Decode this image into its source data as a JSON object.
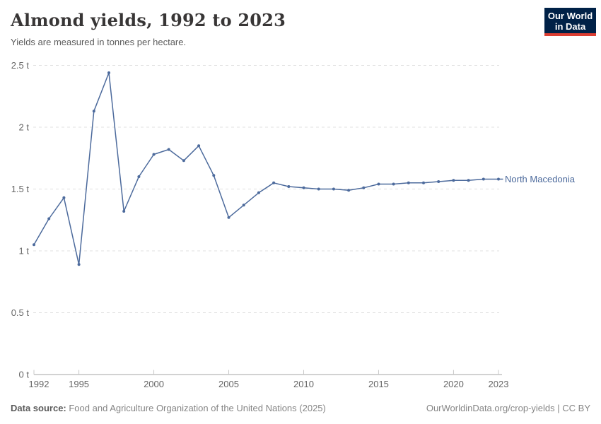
{
  "header": {
    "title": "Almond yields, 1992 to 2023",
    "subtitle": "Yields are measured in tonnes per hectare.",
    "logo": {
      "line1": "Our World",
      "line2": "in Data"
    }
  },
  "chart_data": {
    "type": "line",
    "title": "Almond yields, 1992 to 2023",
    "ylabel": "tonnes per hectare",
    "unit": "t",
    "xlim": [
      1992,
      2023
    ],
    "ylim": [
      0,
      2.5
    ],
    "grid": "horizontal-dashed",
    "legend_position": "end-of-line-label",
    "x_ticks": [
      1992,
      1995,
      2000,
      2005,
      2010,
      2015,
      2020,
      2023
    ],
    "y_ticks": [
      0,
      0.5,
      1,
      1.5,
      2,
      2.5
    ],
    "y_tick_labels": [
      "0 t",
      "0.5 t",
      "1 t",
      "1.5 t",
      "2 t",
      "2.5 t"
    ],
    "series": [
      {
        "name": "North Macedonia",
        "color": "#4C6A9C",
        "x": [
          1992,
          1993,
          1994,
          1995,
          1996,
          1997,
          1998,
          1999,
          2000,
          2001,
          2002,
          2003,
          2004,
          2005,
          2006,
          2007,
          2008,
          2009,
          2010,
          2011,
          2012,
          2013,
          2014,
          2015,
          2016,
          2017,
          2018,
          2019,
          2020,
          2021,
          2022,
          2023
        ],
        "values": [
          1.05,
          1.26,
          1.43,
          0.89,
          2.13,
          2.44,
          1.32,
          1.6,
          1.78,
          1.82,
          1.73,
          1.85,
          1.61,
          1.27,
          1.37,
          1.47,
          1.55,
          1.52,
          1.51,
          1.5,
          1.5,
          1.49,
          1.51,
          1.54,
          1.54,
          1.55,
          1.55,
          1.56,
          1.57,
          1.57,
          1.58,
          1.58
        ]
      }
    ]
  },
  "footer": {
    "source_label": "Data source:",
    "source_text": " Food and Agriculture Organization of the United Nations (2025)",
    "credit": "OurWorldinData.org/crop-yields | CC BY"
  },
  "colors": {
    "line": "#4C6A9C",
    "grid": "#e0e0e0",
    "axis": "#a5a5a5",
    "tick": "#c8c8c8",
    "tick_label": "#666666",
    "logo_bg": "#002147",
    "logo_accent": "#dc3e32",
    "title_text": "#383636"
  }
}
